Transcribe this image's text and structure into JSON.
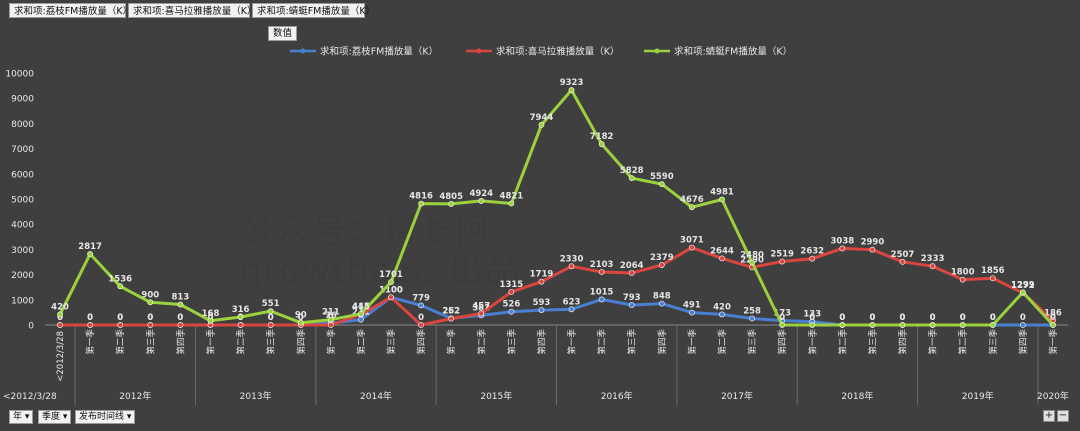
{
  "field_buttons": [
    "求和项:荔枝FM播放量（K）",
    "求和项:喜马拉雅播放量（K）",
    "求和项:蜻蜓FM播放量（K）"
  ],
  "value_button": "数值",
  "bottom_buttons": [
    "年 ▾",
    "季度 ▾",
    "发布时间线 ▾"
  ],
  "zoom": {
    "plus": "+",
    "minus": "−"
  },
  "watermark": {
    "line1": "公众号：增长阿泽",
    "line2": "growthaze 出品"
  },
  "colors": {
    "lizhi": "#4a7fd0",
    "ximalaya": "#d9453f",
    "qingting": "#9bd23c",
    "background": "#3f3f3f",
    "text": "#e8e8e8"
  },
  "chart_data": {
    "type": "line",
    "ylim": [
      0,
      10000
    ],
    "yticks": [
      "0",
      "1000",
      "2000",
      "3000",
      "4000",
      "5000",
      "6000",
      "7000",
      "8000",
      "9000",
      "10000"
    ],
    "x": [
      "<2012/3/28",
      "第一季",
      "第二季",
      "第三季",
      "第四季",
      "第一季",
      "第二季",
      "第三季",
      "第四季",
      "第一季",
      "第二季",
      "第三季",
      "第四季",
      "第一季",
      "第二季",
      "第三季",
      "第四季",
      "第一季",
      "第二季",
      "第三季",
      "第四季",
      "第一季",
      "第二季",
      "第三季",
      "第四季",
      "第一季",
      "第二季",
      "第三季",
      "第四季",
      "第一季",
      "第二季",
      "第三季",
      "第四季",
      "第一季"
    ],
    "years": [
      {
        "label": "<2012/3/28",
        "span": 1
      },
      {
        "label": "2012年",
        "span": 4
      },
      {
        "label": "2013年",
        "span": 4
      },
      {
        "label": "2014年",
        "span": 4
      },
      {
        "label": "2015年",
        "span": 4
      },
      {
        "label": "2016年",
        "span": 4
      },
      {
        "label": "2017年",
        "span": 4
      },
      {
        "label": "2018年",
        "span": 4
      },
      {
        "label": "2019年",
        "span": 4
      },
      {
        "label": "2020年",
        "span": 1
      }
    ],
    "legend_placement": "top",
    "grid": false,
    "series": [
      {
        "name": "求和项:荔枝FM播放量（K）",
        "color": "#4a7fd0",
        "values": [
          0,
          0,
          0,
          0,
          0,
          0,
          0,
          0,
          0,
          76,
          211,
          1100,
          779,
          262,
          382,
          526,
          593,
          623,
          1015,
          793,
          848,
          491,
          420,
          258,
          173,
          133,
          0,
          0,
          0,
          0,
          0,
          0,
          0,
          0
        ]
      },
      {
        "name": "求和项:喜马拉雅播放量（K）",
        "color": "#d9453f",
        "values": [
          0,
          0,
          0,
          0,
          0,
          0,
          0,
          0,
          0,
          0,
          414,
          1100,
          0,
          252,
          457,
          1315,
          1719,
          2330,
          2103,
          2064,
          2379,
          3071,
          2644,
          2290,
          2519,
          2632,
          3038,
          2990,
          2507,
          2333,
          1800,
          1856,
          1272,
          186
        ]
      },
      {
        "name": "求和项:蜻蜓FM播放量（K）",
        "color": "#9bd23c",
        "values": [
          420,
          2817,
          1536,
          900,
          813,
          168,
          316,
          551,
          90,
          211,
          445,
          1701,
          4816,
          4805,
          4924,
          4821,
          7944,
          9323,
          7182,
          5828,
          5590,
          4676,
          4981,
          2480,
          0,
          0,
          0,
          0,
          0,
          0,
          0,
          0,
          1299,
          0
        ]
      }
    ]
  }
}
